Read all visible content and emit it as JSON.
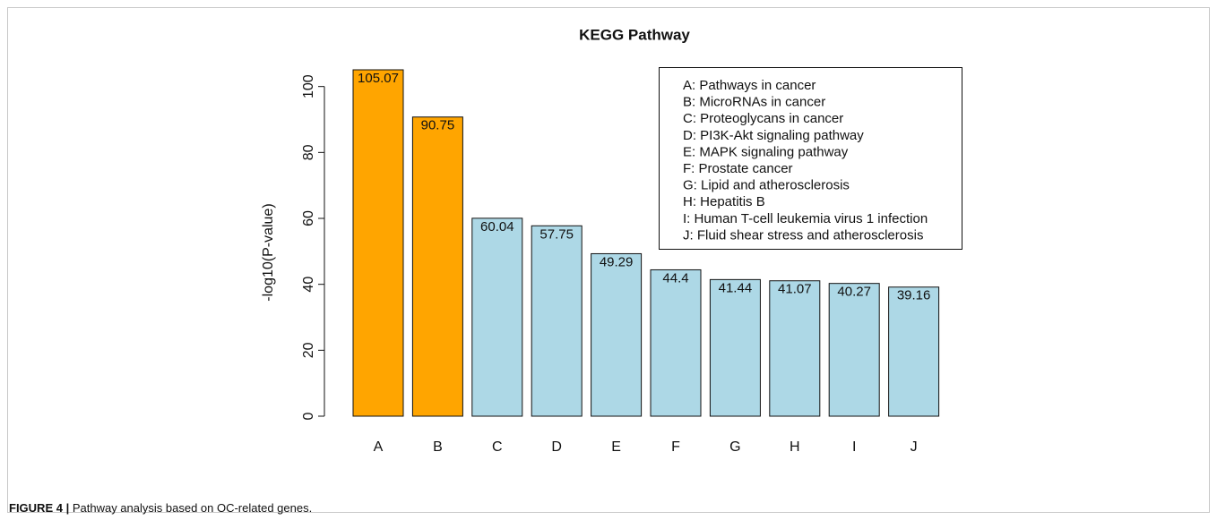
{
  "chart_data": {
    "type": "bar",
    "title": "KEGG Pathway",
    "ylabel": "-log10(P-value)",
    "categories": [
      "A",
      "B",
      "C",
      "D",
      "E",
      "F",
      "G",
      "H",
      "I",
      "J"
    ],
    "values": [
      105.07,
      90.75,
      60.04,
      57.75,
      49.29,
      44.4,
      41.44,
      41.07,
      40.27,
      39.16
    ],
    "colors": [
      "#FFA500",
      "#FFA500",
      "#ADD8E6",
      "#ADD8E6",
      "#ADD8E6",
      "#ADD8E6",
      "#ADD8E6",
      "#ADD8E6",
      "#ADD8E6",
      "#ADD8E6"
    ],
    "ylim": [
      0,
      105.07
    ],
    "yticks": [
      0,
      20,
      40,
      60,
      80,
      100
    ],
    "grid": false,
    "legend_position": "top-right",
    "legend": [
      "A: Pathways in cancer",
      "B: MicroRNAs in cancer",
      "C: Proteoglycans in cancer",
      "D: PI3K-Akt signaling pathway",
      "E: MAPK signaling pathway",
      "F: Prostate cancer",
      "G: Lipid and atherosclerosis",
      "H: Hepatitis B",
      "I: Human T-cell leukemia virus 1 infection",
      "J: Fluid shear stress and atherosclerosis"
    ]
  },
  "caption_label": "FIGURE 4 |",
  "caption": "Pathway analysis based on OC-related genes."
}
